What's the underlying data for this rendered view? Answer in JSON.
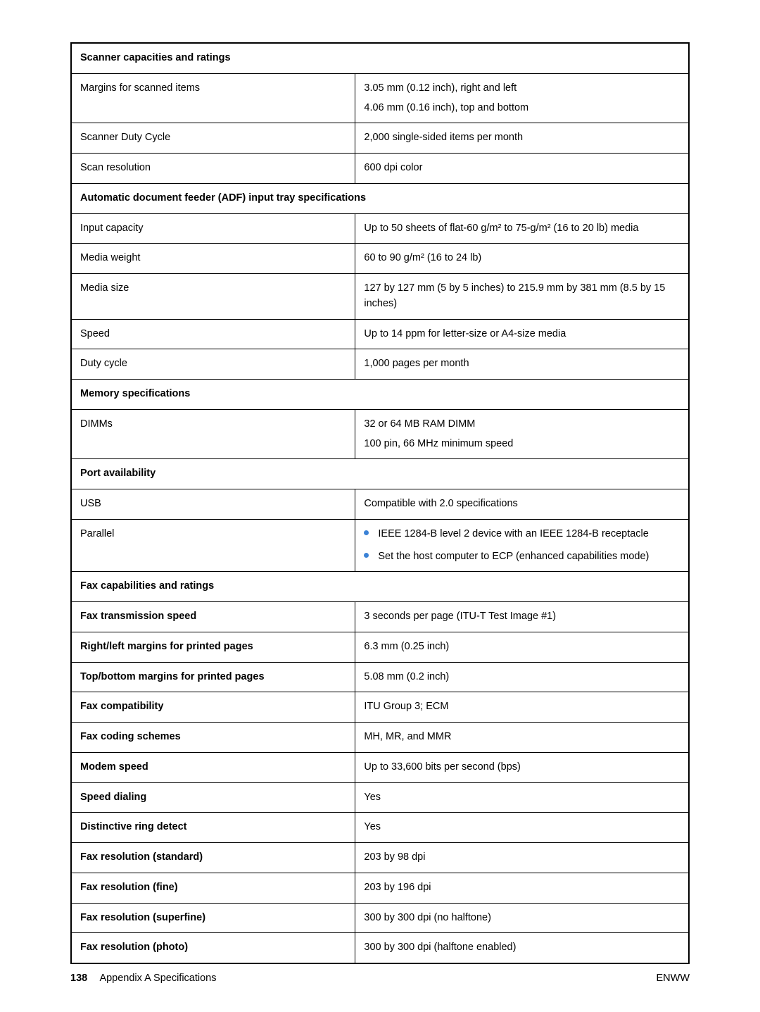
{
  "table": {
    "sections": [
      {
        "header": "Scanner capacities and ratings",
        "rows": [
          {
            "label": "Margins for scanned items",
            "label_bold": false,
            "lines": [
              "3.05 mm (0.12 inch), right and left",
              "4.06 mm (0.16 inch), top and bottom"
            ]
          },
          {
            "label": "Scanner Duty Cycle",
            "label_bold": false,
            "lines": [
              "2,000 single-sided items per month"
            ]
          },
          {
            "label": "Scan resolution",
            "label_bold": false,
            "lines": [
              "600 dpi color"
            ]
          }
        ]
      },
      {
        "header": "Automatic document feeder (ADF) input tray specifications",
        "rows": [
          {
            "label": "Input capacity",
            "label_bold": false,
            "lines": [
              "Up to 50 sheets of flat-60 g/m² to 75-g/m² (16 to 20 lb) media"
            ]
          },
          {
            "label": "Media weight",
            "label_bold": false,
            "lines": [
              "60 to 90 g/m² (16 to 24 lb)"
            ]
          },
          {
            "label": "Media size",
            "label_bold": false,
            "lines": [
              "127 by 127 mm (5 by 5 inches) to 215.9 mm by 381 mm (8.5 by 15 inches)"
            ]
          },
          {
            "label": "Speed",
            "label_bold": false,
            "lines": [
              "Up to 14 ppm for letter-size or A4-size media"
            ]
          },
          {
            "label": "Duty cycle",
            "label_bold": false,
            "lines": [
              "1,000 pages per month"
            ]
          }
        ]
      },
      {
        "header": "Memory specifications",
        "rows": [
          {
            "label": "DIMMs",
            "label_bold": false,
            "lines": [
              "32 or 64 MB RAM DIMM",
              "100 pin, 66 MHz minimum speed"
            ]
          }
        ]
      },
      {
        "header": "Port availability",
        "rows": [
          {
            "label": "USB",
            "label_bold": false,
            "lines": [
              "Compatible with 2.0 specifications"
            ]
          },
          {
            "label": "Parallel",
            "label_bold": false,
            "bullets": [
              "IEEE 1284-B level 2 device with an IEEE 1284-B receptacle",
              "Set the host computer to ECP (enhanced capabilities mode)"
            ]
          }
        ]
      },
      {
        "header": "Fax capabilities and ratings",
        "rows": [
          {
            "label": "Fax transmission speed",
            "label_bold": true,
            "lines": [
              "3 seconds per page (ITU-T Test Image #1)"
            ]
          },
          {
            "label": "Right/left margins for printed pages",
            "label_bold": true,
            "lines": [
              "6.3 mm (0.25 inch)"
            ]
          },
          {
            "label": "Top/bottom margins for printed pages",
            "label_bold": true,
            "lines": [
              "5.08 mm (0.2 inch)"
            ]
          },
          {
            "label": "Fax compatibility",
            "label_bold": true,
            "lines": [
              "ITU Group 3; ECM"
            ]
          },
          {
            "label": "Fax coding schemes",
            "label_bold": true,
            "lines": [
              "MH, MR, and MMR"
            ]
          },
          {
            "label": "Modem speed",
            "label_bold": true,
            "lines": [
              "Up to 33,600 bits per second (bps)"
            ]
          },
          {
            "label": "Speed dialing",
            "label_bold": true,
            "lines": [
              "Yes"
            ]
          },
          {
            "label": "Distinctive ring detect",
            "label_bold": true,
            "lines": [
              "Yes"
            ]
          },
          {
            "label": "Fax resolution (standard)",
            "label_bold": true,
            "lines": [
              "203 by 98 dpi"
            ]
          },
          {
            "label": "Fax resolution (fine)",
            "label_bold": true,
            "lines": [
              "203 by 196 dpi"
            ]
          },
          {
            "label": "Fax resolution (superfine)",
            "label_bold": true,
            "lines": [
              "300 by 300 dpi (no halftone)"
            ]
          },
          {
            "label": "Fax resolution (photo)",
            "label_bold": true,
            "lines": [
              "300 by 300 dpi (halftone enabled)"
            ]
          }
        ]
      }
    ]
  },
  "footer": {
    "page_number": "138",
    "left_text": "Appendix A  Specifications",
    "right_text": "ENWW"
  },
  "colors": {
    "bullet": "#3b82d6",
    "border": "#000000",
    "text": "#000000",
    "background": "#ffffff"
  }
}
